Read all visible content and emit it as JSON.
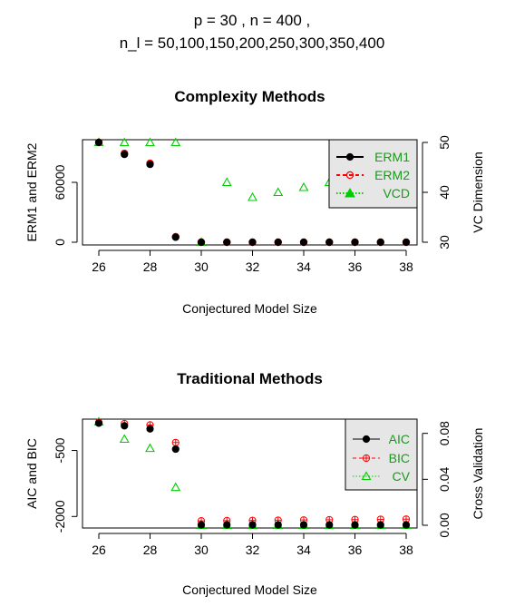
{
  "header": {
    "line1": "p =  30 ,  n =  400 ,",
    "line2": "n_l =  50,100,150,200,250,300,350,400"
  },
  "colors": {
    "black": "#000000",
    "red": "#ff0000",
    "green": "#00cc00",
    "legend_text": "#1a9a1a",
    "legend_bg": "#e6e6e6"
  },
  "chart_data": [
    {
      "type": "scatter",
      "title": "Complexity Methods",
      "xlabel": "Conjectured Model Size",
      "ylabel": "ERM1 and ERM2",
      "y2label": "VC Dimension",
      "x": [
        26,
        27,
        28,
        29,
        30,
        31,
        32,
        33,
        34,
        35,
        36,
        37,
        38
      ],
      "xlim": [
        26,
        38
      ],
      "xticks": [
        "26",
        "28",
        "30",
        "32",
        "34",
        "36",
        "38"
      ],
      "ylim": [
        0,
        100000
      ],
      "yticks": [
        "0",
        "60000"
      ],
      "y2lim": [
        30,
        50
      ],
      "y2ticks": [
        "30",
        "40",
        "50"
      ],
      "legend_position": "top-right",
      "series": [
        {
          "name": "ERM1",
          "axis": "left",
          "marker": "filled-circle",
          "color": "#000000",
          "values": [
            100000,
            88000,
            78000,
            5000,
            0,
            0,
            0,
            0,
            0,
            0,
            0,
            0,
            0
          ]
        },
        {
          "name": "ERM2",
          "axis": "left",
          "marker": "circle",
          "color": "#ff0000",
          "values": [
            100000,
            89000,
            79000,
            5500,
            0,
            0,
            0,
            0,
            0,
            0,
            0,
            0,
            0
          ]
        },
        {
          "name": "VCD",
          "axis": "right",
          "marker": "triangle",
          "color": "#00cc00",
          "values": [
            50,
            50,
            50,
            50,
            30,
            42,
            39,
            40,
            41,
            42,
            42,
            43,
            44
          ]
        }
      ]
    },
    {
      "type": "scatter",
      "title": "Traditional Methods",
      "xlabel": "Conjectured Model Size",
      "ylabel": "AIC and BIC",
      "y2label": "Cross Validation",
      "x": [
        26,
        27,
        28,
        29,
        30,
        31,
        32,
        33,
        34,
        35,
        36,
        37,
        38
      ],
      "xlim": [
        26,
        38
      ],
      "xticks": [
        "26",
        "28",
        "30",
        "32",
        "34",
        "36",
        "38"
      ],
      "ylim": [
        -2200,
        150
      ],
      "yticks": [
        "-2000",
        "-500"
      ],
      "y2lim": [
        0,
        0.09
      ],
      "y2ticks": [
        "0.00",
        "0.04",
        "0.08"
      ],
      "legend_position": "top-right",
      "series": [
        {
          "name": "AIC",
          "axis": "left",
          "marker": "filled-circle",
          "color": "#000000",
          "values": [
            120,
            60,
            -10,
            -470,
            -2190,
            -2190,
            -2190,
            -2190,
            -2190,
            -2190,
            -2190,
            -2190,
            -2190
          ]
        },
        {
          "name": "BIC",
          "axis": "left",
          "marker": "circle-plus",
          "color": "#ff0000",
          "values": [
            140,
            110,
            80,
            -320,
            -2100,
            -2095,
            -2090,
            -2085,
            -2080,
            -2075,
            -2070,
            -2065,
            -2060
          ]
        },
        {
          "name": "CV",
          "axis": "right",
          "marker": "triangle",
          "color": "#00cc00",
          "values": [
            0.09,
            0.075,
            0.067,
            0.033,
            0.0,
            0.0,
            0.0,
            0.0,
            0.0,
            0.0,
            0.0,
            0.0,
            0.0
          ]
        }
      ]
    }
  ]
}
